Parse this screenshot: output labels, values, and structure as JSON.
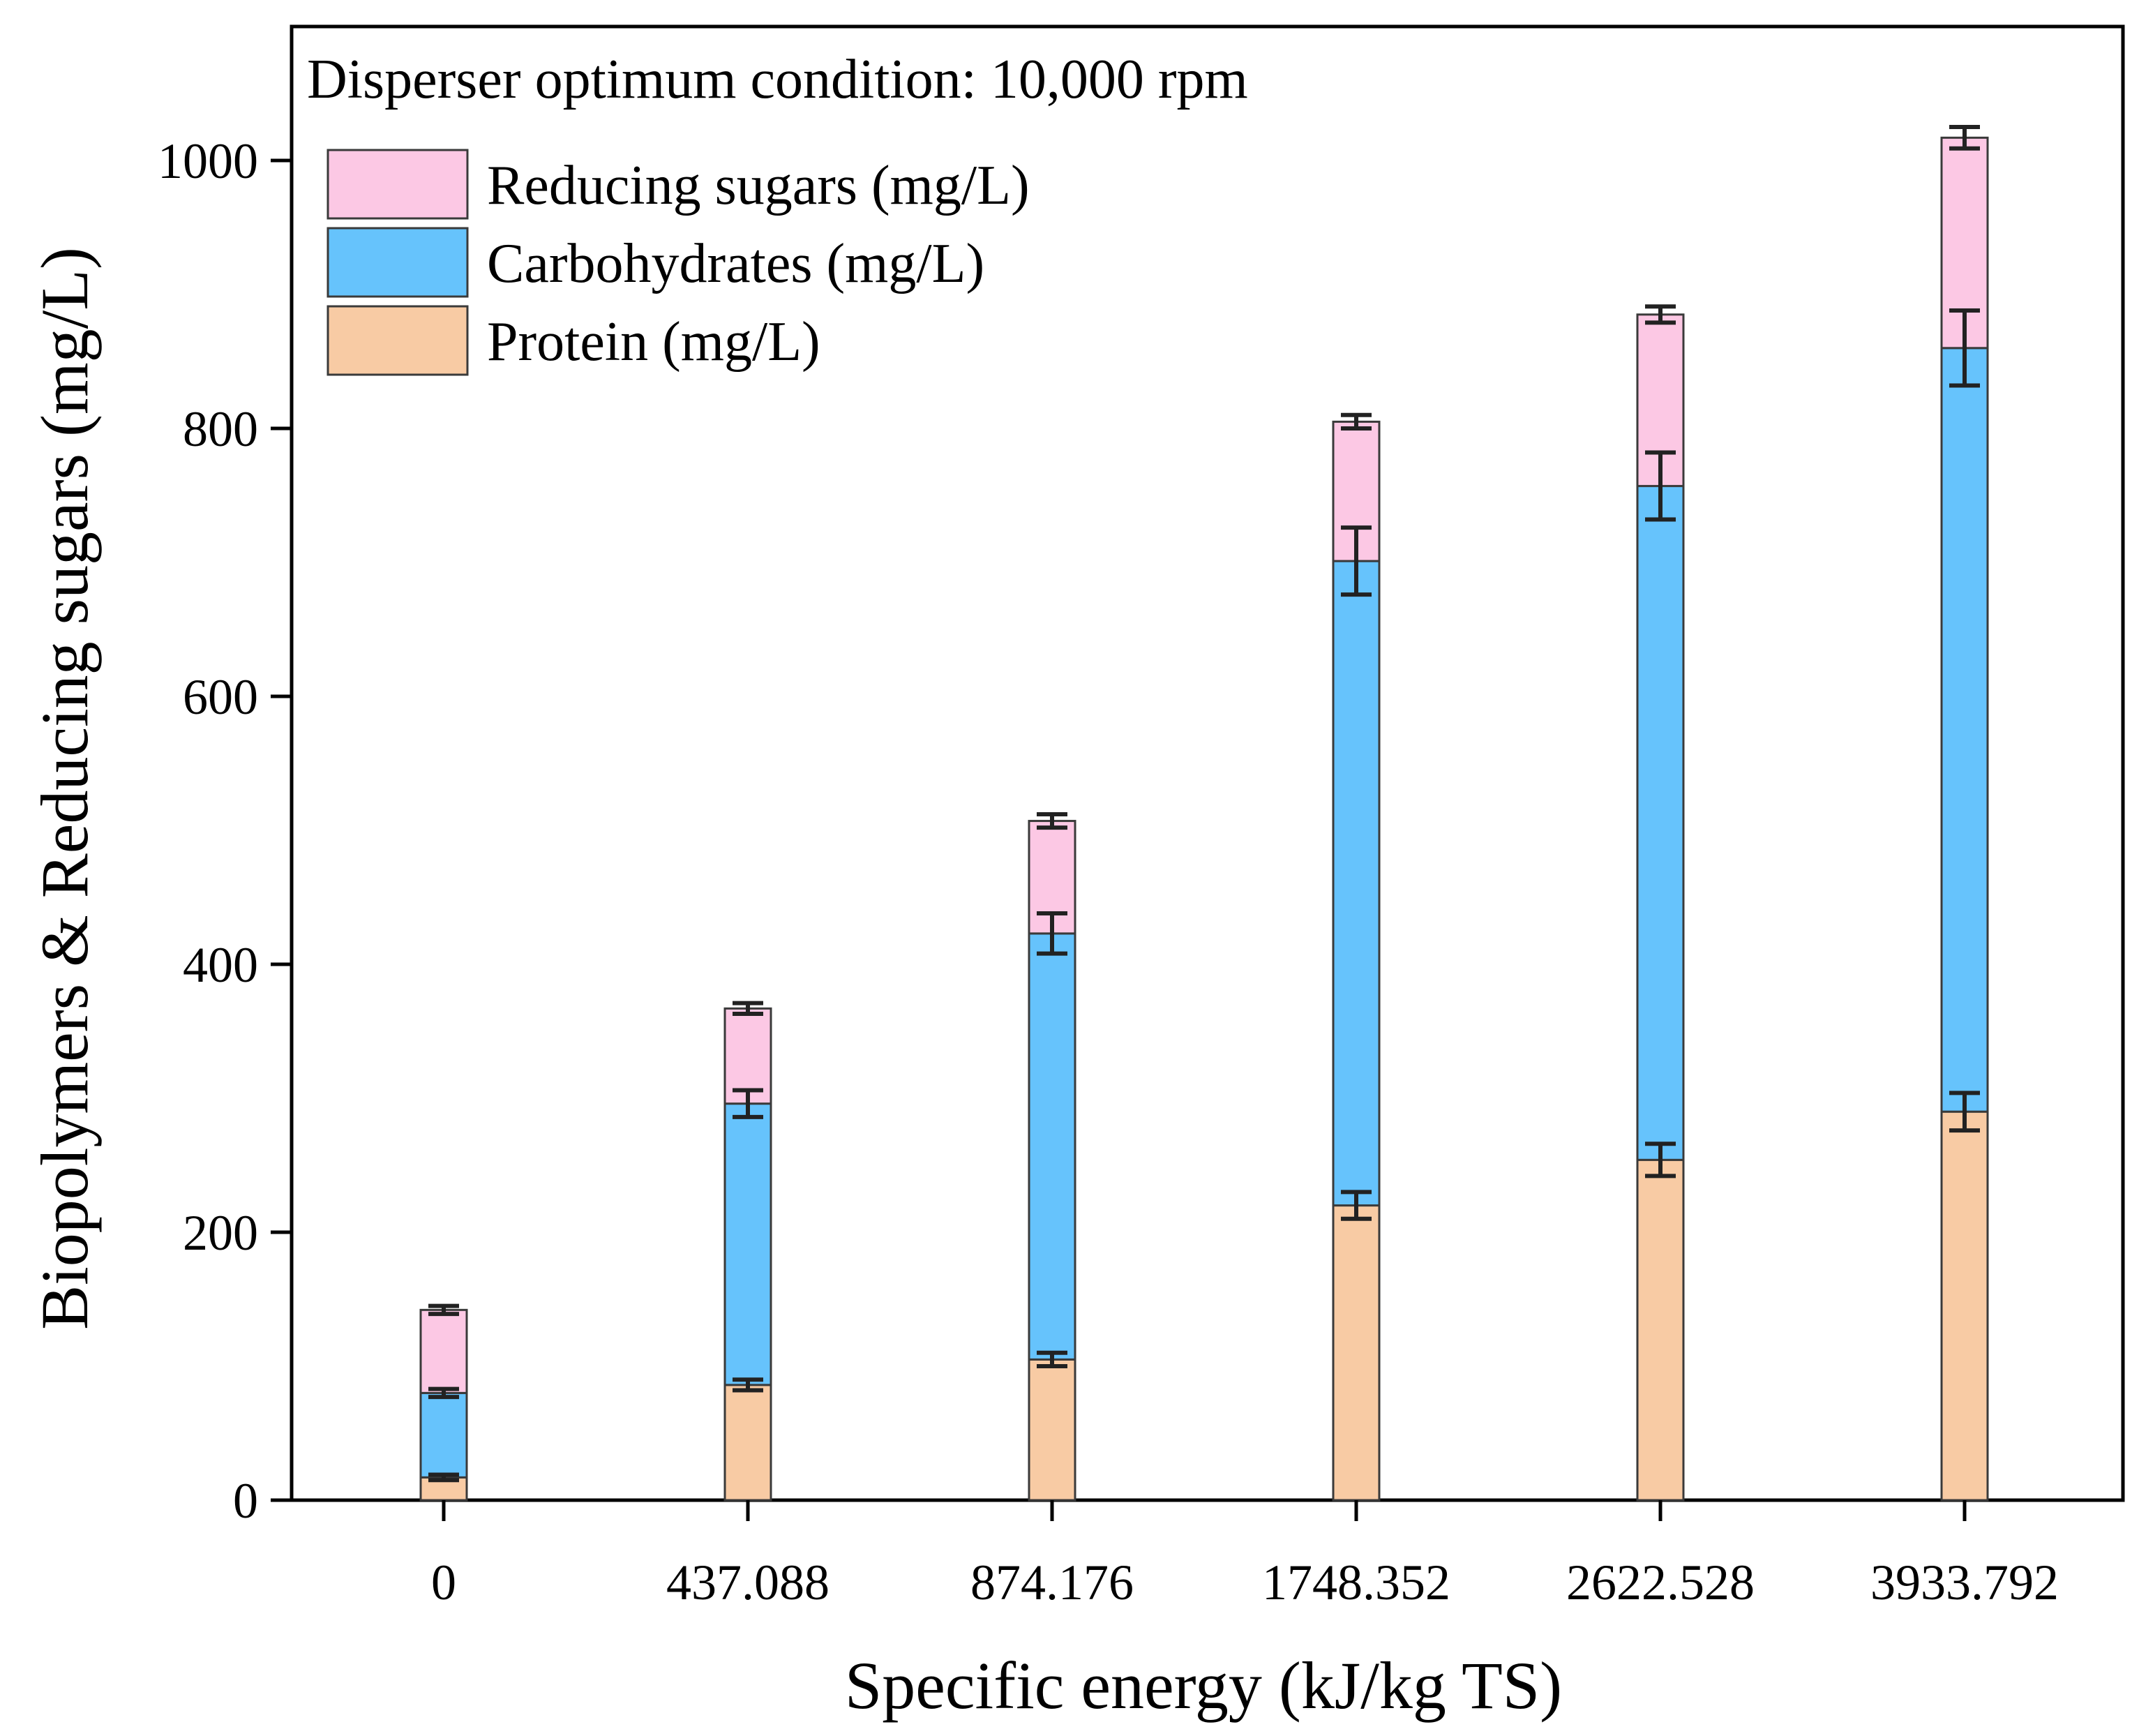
{
  "chart_data": {
    "type": "bar",
    "stacked": true,
    "annotation": "Disperser optimum condition: 10,000 rpm",
    "xlabel": "Specific energy (kJ/kg TS)",
    "ylabel": "Biopolymers & Reducing sugars (mg/L)",
    "categories": [
      "0",
      "437.088",
      "874.176",
      "1748.352",
      "2622.528",
      "3933.792"
    ],
    "ylim": [
      0,
      1100
    ],
    "yticks": [
      0,
      200,
      400,
      600,
      800,
      1000
    ],
    "ytick_labels": [
      "0",
      "200",
      "400",
      "600",
      "800",
      "1000"
    ],
    "grid": false,
    "legend_position": "top-left",
    "series": [
      {
        "name": "Protein (mg/L)",
        "color": "#f8cba4",
        "values": [
          17,
          86,
          105,
          220,
          254,
          290
        ],
        "errors": [
          2,
          4,
          5,
          10,
          12,
          14
        ]
      },
      {
        "name": "Carbohydrates (mg/L)",
        "color": "#66c3fc",
        "values": [
          63,
          210,
          318,
          481,
          503,
          570
        ],
        "errors": [
          3,
          10,
          15,
          25,
          25,
          28
        ]
      },
      {
        "name": "Reducing sugars (mg/L)",
        "color": "#fcc8e4",
        "values": [
          62,
          71,
          84,
          104,
          128,
          157
        ],
        "errors": [
          3,
          4,
          5,
          5,
          6,
          8
        ]
      }
    ],
    "legend_order": [
      2,
      1,
      0
    ]
  }
}
